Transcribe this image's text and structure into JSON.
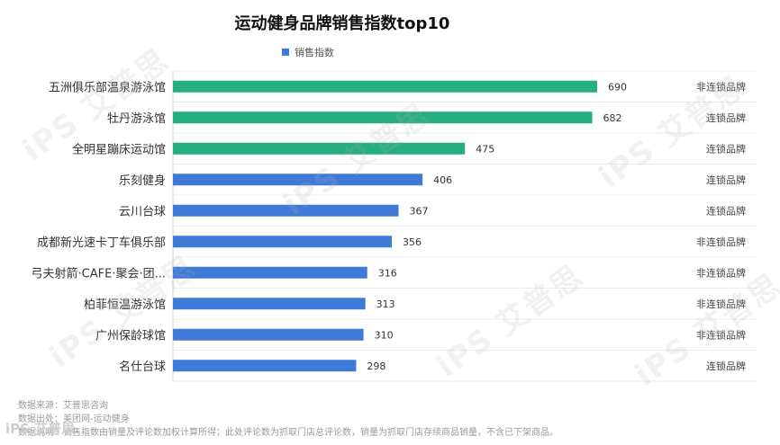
{
  "chart_data": {
    "type": "bar",
    "orientation": "horizontal",
    "title": "运动健身品牌销售指数top10",
    "legend": {
      "label": "销售指数",
      "position": "top"
    },
    "categories": [
      "五洲俱乐部温泉游泳馆",
      "牡丹游泳馆",
      "全明星蹦床运动馆",
      "乐刻健身",
      "云川台球",
      "成都新光速卡丁车俱乐部",
      "弓夫射箭·CAFE·聚会·团...",
      "柏菲恒温游泳馆",
      "广州保龄球馆",
      "名仕台球"
    ],
    "values": [
      690,
      682,
      475,
      406,
      367,
      356,
      316,
      313,
      310,
      298
    ],
    "brand_type": [
      "非连锁品牌",
      "连锁品牌",
      "连锁品牌",
      "连锁品牌",
      "连锁品牌",
      "非连锁品牌",
      "非连锁品牌",
      "非连锁品牌",
      "非连锁品牌",
      "连锁品牌"
    ],
    "highlight_top": 3,
    "xlim": [
      0,
      690
    ],
    "grid": true,
    "colors": {
      "top": "#27ae7f",
      "rest": "#3f7ad8"
    }
  },
  "notes": [
    "数据来源：艾普思咨询",
    "数据出处：美团网-运动健身",
    "数据说明：销售指数由销量及评论数加权计算所得；此处评论数为抓取门店总评论数，销量为抓取门店存续商品销量，不含已下架商品。"
  ],
  "watermark": "iPS 艾普思",
  "corner_mark": "iPS 艾普思"
}
